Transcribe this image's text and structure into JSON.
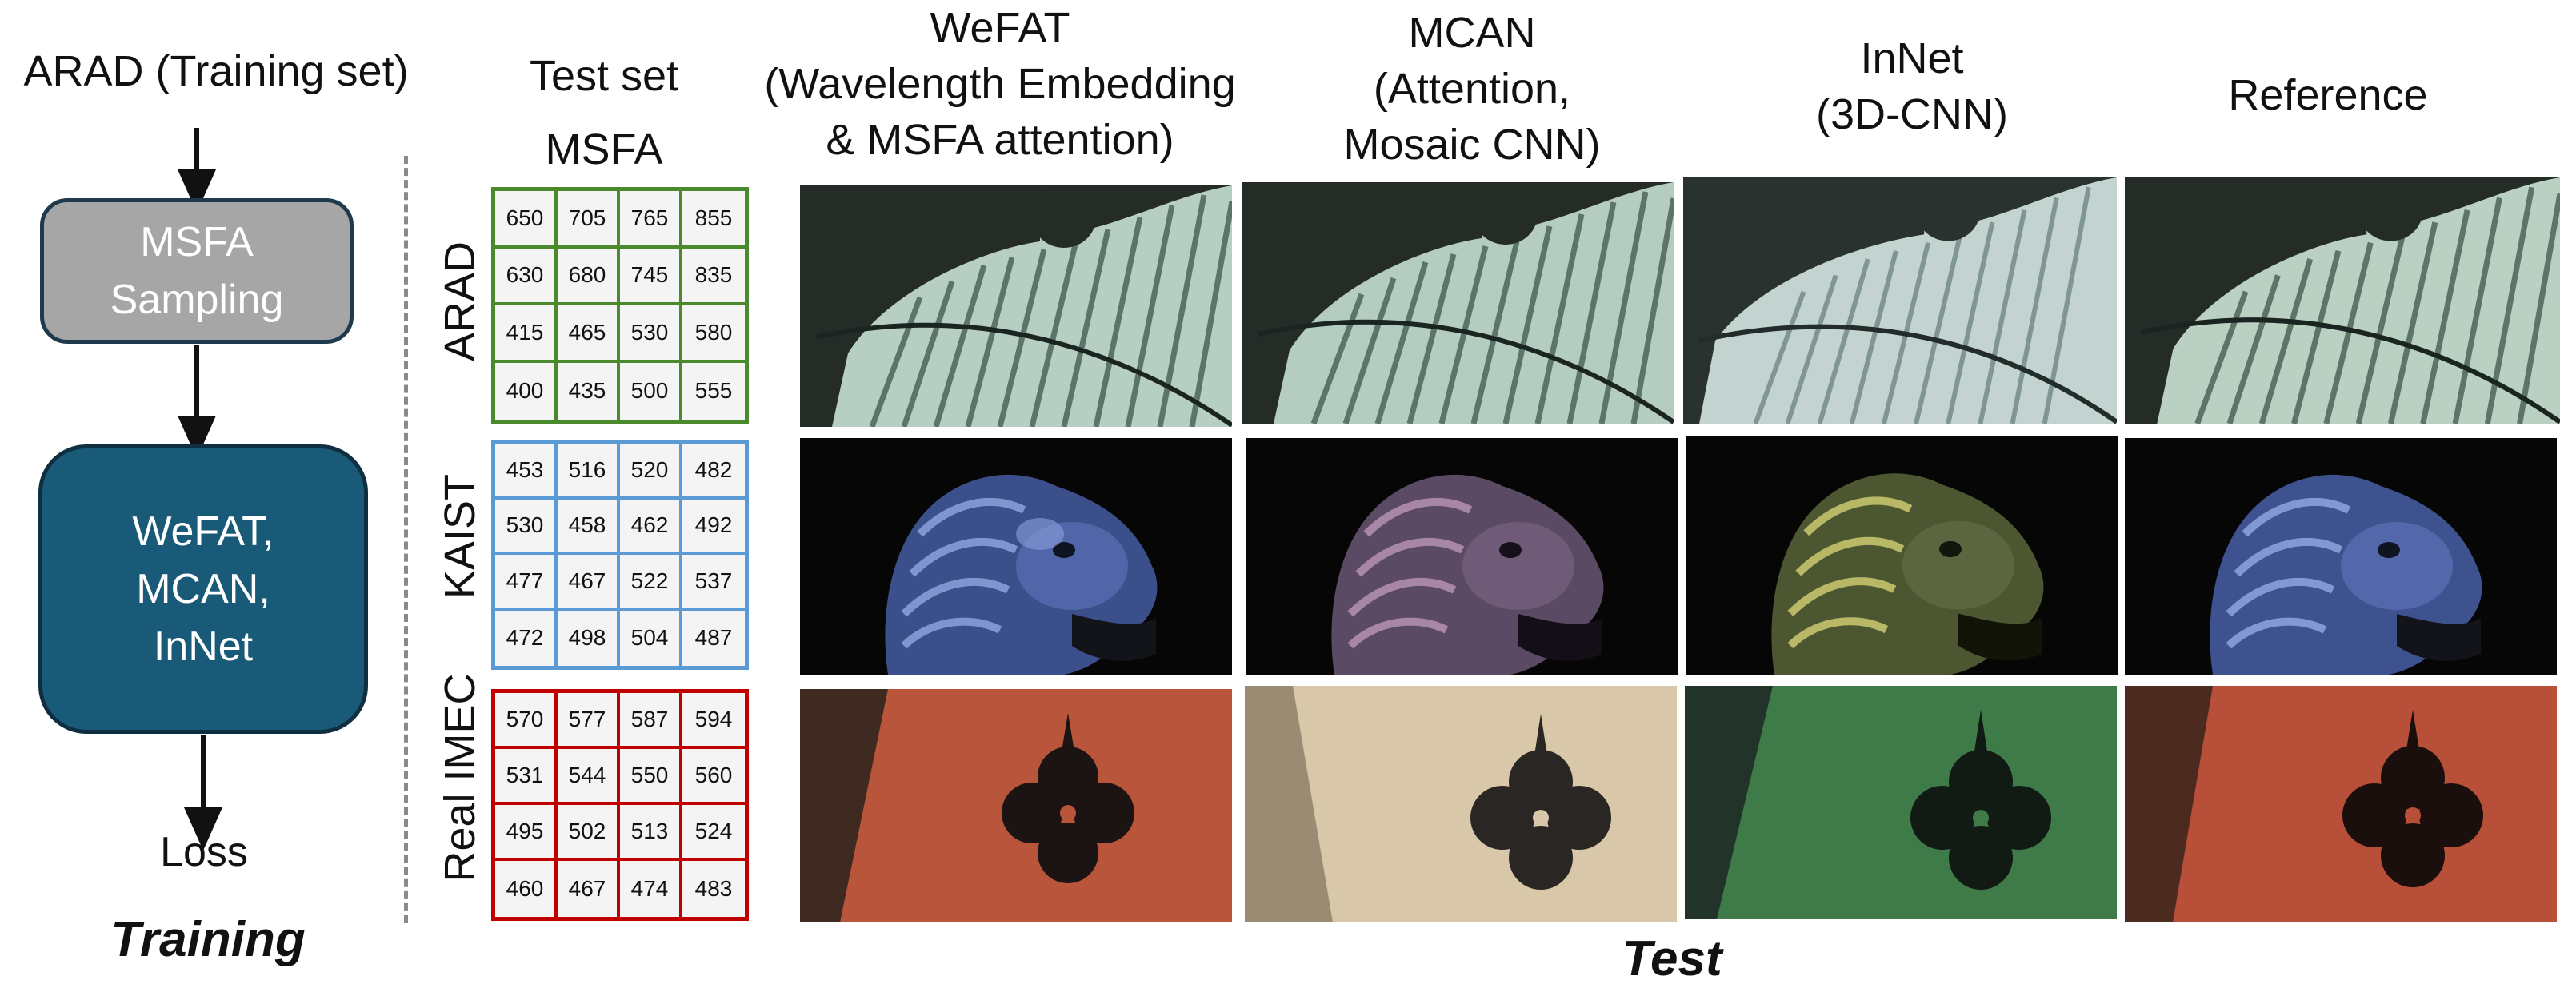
{
  "training": {
    "dataset_label": "ARAD (Training set)",
    "msfa_box": [
      "MSFA",
      "Sampling"
    ],
    "net_box": [
      "WeFAT,",
      "MCAN,",
      "InNet"
    ],
    "loss_label": "Loss",
    "section_label": "Training"
  },
  "test": {
    "section_label": "Test",
    "testset_header": [
      "Test set",
      "MSFA"
    ],
    "columns": [
      {
        "lines": [
          "WeFAT",
          "(Wavelength Embedding",
          "& MSFA attention)"
        ]
      },
      {
        "lines": [
          "MCAN",
          "(Attention,",
          "Mosaic CNN)"
        ]
      },
      {
        "lines": [
          "InNet",
          "(3D-CNN)"
        ]
      },
      {
        "lines": [
          "Reference"
        ]
      }
    ],
    "rows": [
      {
        "label": "ARAD",
        "color": "#4a8a2c",
        "grid": [
          [
            "650",
            "705",
            "765",
            "855"
          ],
          [
            "630",
            "680",
            "745",
            "835"
          ],
          [
            "415",
            "465",
            "530",
            "580"
          ],
          [
            "400",
            "435",
            "500",
            "555"
          ]
        ]
      },
      {
        "label": "KAIST",
        "color": "#5b9bd5",
        "grid": [
          [
            "453",
            "516",
            "520",
            "482"
          ],
          [
            "530",
            "458",
            "462",
            "492"
          ],
          [
            "477",
            "467",
            "522",
            "537"
          ],
          [
            "472",
            "498",
            "504",
            "487"
          ]
        ]
      },
      {
        "label": "Real IMEC",
        "color": "#c00000",
        "grid": [
          [
            "570",
            "577",
            "587",
            "594"
          ],
          [
            "531",
            "544",
            "550",
            "560"
          ],
          [
            "495",
            "502",
            "513",
            "524"
          ],
          [
            "460",
            "467",
            "474",
            "483"
          ]
        ]
      }
    ]
  },
  "colors": {
    "msfa_box": "#a6a6a6",
    "net_box": "#185a78",
    "dashed_line": "#8a8a8a"
  }
}
